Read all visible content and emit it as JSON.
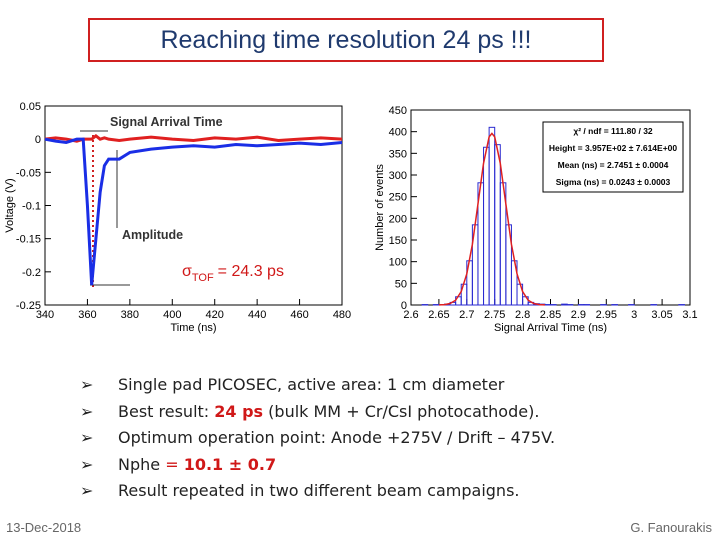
{
  "title": "Reaching time resolution 24 ps !!!",
  "chart_data": [
    {
      "type": "line",
      "xlabel": "Time (ns)",
      "ylabel": "Voltage (V)",
      "xlim": [
        340,
        480
      ],
      "ylim": [
        -0.25,
        0.05
      ],
      "xticks": [
        340,
        360,
        380,
        400,
        420,
        440,
        460,
        480
      ],
      "yticks": [
        -0.25,
        -0.2,
        -0.15,
        -0.1,
        -0.05,
        0,
        0.05
      ],
      "annotations": [
        "Signal Arrival Time",
        "Amplitude"
      ],
      "sigma_label": [
        "σ",
        "TOF",
        "= 24.3 ps"
      ],
      "series": [
        {
          "color": "#e02020",
          "x": [
            340,
            345,
            350,
            355,
            358,
            360,
            362,
            364,
            366,
            368,
            370,
            375,
            380,
            390,
            400,
            410,
            420,
            430,
            440,
            450,
            460,
            470,
            480
          ],
          "values": [
            0,
            0.002,
            0,
            -0.003,
            0,
            0,
            0,
            0.005,
            0,
            0.002,
            0,
            -0.002,
            0,
            0.003,
            0,
            -0.002,
            0.002,
            0,
            0.003,
            -0.002,
            0,
            0.002,
            0
          ]
        },
        {
          "color": "#1a2ee6",
          "x": [
            340,
            345,
            350,
            355,
            358,
            360,
            362,
            364,
            366,
            368,
            370,
            375,
            380,
            390,
            400,
            410,
            420,
            430,
            440,
            450,
            460,
            470,
            480
          ],
          "values": [
            0,
            -0.003,
            -0.005,
            0,
            0,
            -0.1,
            -0.22,
            -0.15,
            -0.08,
            -0.04,
            -0.03,
            -0.03,
            -0.02,
            -0.015,
            -0.012,
            -0.01,
            -0.012,
            -0.008,
            -0.01,
            -0.008,
            -0.006,
            -0.008,
            -0.005
          ]
        }
      ]
    },
    {
      "type": "histogram",
      "xlabel": "Signal Arrival Time (ns)",
      "ylabel": "Number of events",
      "xlim": [
        2.6,
        3.1
      ],
      "ylim": [
        0,
        450
      ],
      "xticks": [
        2.6,
        2.65,
        2.7,
        2.75,
        2.8,
        2.85,
        2.9,
        2.95,
        3,
        3.05,
        3.1
      ],
      "yticks": [
        0,
        50,
        100,
        150,
        200,
        250,
        300,
        350,
        400,
        450
      ],
      "color": "#2a2ad0",
      "bins": [
        2.6,
        2.61,
        2.62,
        2.63,
        2.64,
        2.65,
        2.66,
        2.67,
        2.68,
        2.69,
        2.7,
        2.71,
        2.72,
        2.73,
        2.74,
        2.75,
        2.76,
        2.77,
        2.78,
        2.79,
        2.8,
        2.81,
        2.82,
        2.83,
        2.84,
        2.85,
        2.86,
        2.87,
        2.88,
        2.89,
        2.9,
        2.91,
        2.92,
        2.93,
        2.94,
        2.95,
        2.96,
        2.97,
        2.98,
        2.99,
        3.0,
        3.01,
        3.02,
        3.03,
        3.04,
        3.05,
        3.06,
        3.07,
        3.08,
        3.09,
        3.1
      ],
      "values": [
        0,
        0,
        1,
        0,
        1,
        1,
        2,
        6,
        19,
        48,
        102,
        185,
        282,
        364,
        410,
        370,
        282,
        185,
        102,
        48,
        19,
        6,
        3,
        2,
        1,
        1,
        0,
        2,
        1,
        0,
        1,
        1,
        0,
        0,
        1,
        0,
        1,
        0,
        0,
        1,
        0,
        0,
        0,
        1,
        0,
        0,
        0,
        0,
        1,
        0
      ],
      "fit": {
        "color": "#e02020",
        "x": [
          2.65,
          2.66,
          2.67,
          2.68,
          2.69,
          2.7,
          2.71,
          2.72,
          2.73,
          2.74,
          2.745,
          2.75,
          2.76,
          2.77,
          2.78,
          2.79,
          2.8,
          2.81,
          2.82,
          2.83,
          2.84
        ],
        "values": [
          0.2,
          0.9,
          3.4,
          11,
          31,
          72,
          140,
          233,
          327,
          388,
          396,
          388,
          327,
          233,
          140,
          72,
          31,
          11,
          3.4,
          0.9,
          0.2
        ]
      },
      "stats": [
        "χ² / ndf = 111.80 / 32",
        "Height = 3.957E+02 ± 7.614E+00",
        "Mean (ns) = 2.7451 ± 0.0004",
        "Sigma (ns) = 0.0243 ± 0.0003"
      ]
    }
  ],
  "bullets": [
    [
      "Single pad PICOSEC, active area: 1 cm diameter"
    ],
    [
      "Best result: ",
      "24 ps",
      " (bulk MM + Cr/CsI photocathode)."
    ],
    [
      "Optimum operation point: Anode +275V / Drift – 475V."
    ],
    [
      "Nphe ",
      "= ",
      "10.1 ± 0.7"
    ],
    [
      "Result repeated in two different beam campaigns."
    ]
  ],
  "footer": {
    "date": "13-Dec-2018",
    "author": "G. Fanourakis"
  }
}
